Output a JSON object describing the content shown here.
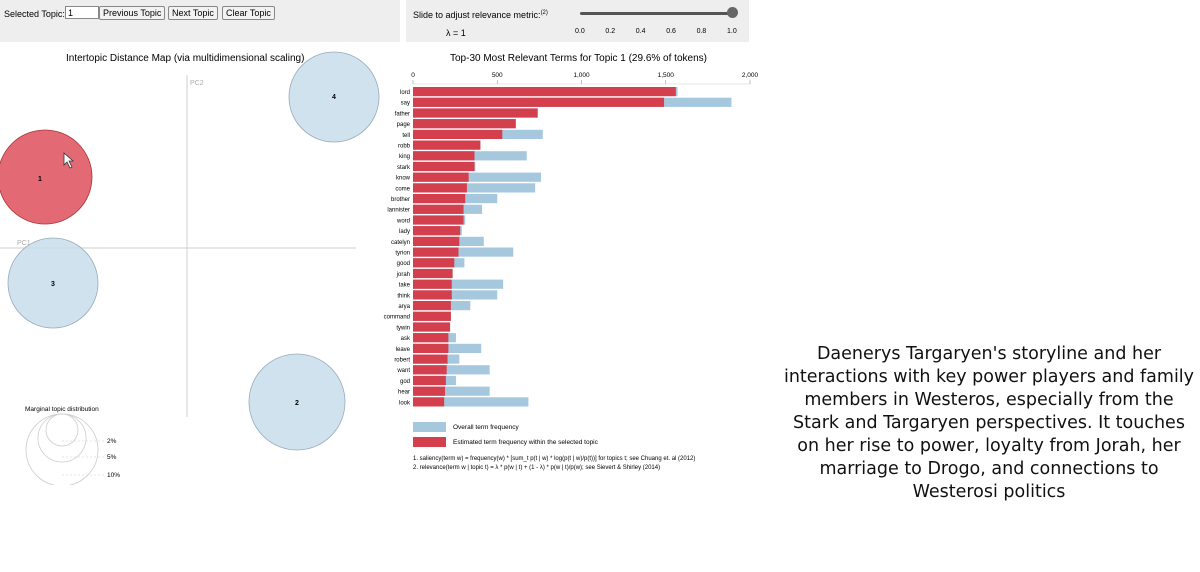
{
  "controls": {
    "selected_topic_label": "Selected Topic:",
    "selected_topic_value": "1",
    "prev_label": "Previous Topic",
    "next_label": "Next Topic",
    "clear_label": "Clear Topic"
  },
  "relevance": {
    "label": "Slide to adjust relevance metric:",
    "sup": "(2)",
    "lambda_text": "λ = 1",
    "value": 1.0,
    "ticks": [
      "0.0",
      "0.2",
      "0.4",
      "0.6",
      "0.8",
      "1.0"
    ]
  },
  "map": {
    "title": "Intertopic Distance Map (via multidimensional scaling)",
    "pc1_label": "PC1",
    "pc2_label": "PC2",
    "topics": [
      {
        "id": "1",
        "selected": true
      },
      {
        "id": "2",
        "selected": false
      },
      {
        "id": "3",
        "selected": false
      },
      {
        "id": "4",
        "selected": false
      }
    ],
    "marginal_title": "Marginal topic distribution",
    "marginal_labels": [
      "2%",
      "5%",
      "10%"
    ]
  },
  "colors": {
    "selected_topic": "#e05a66",
    "topic": "#c6dbeb",
    "overall_bar": "#a6c8df",
    "estimated_bar": "#d43f4d"
  },
  "chart_data": {
    "type": "bar",
    "orientation": "horizontal",
    "title": "Top-30 Most Relevant Terms for Topic 1 (29.6% of tokens)",
    "xlim": [
      0,
      2000
    ],
    "xticks": [
      "0",
      "500",
      "1,000",
      "1,500",
      "2,000"
    ],
    "categories": [
      "lord",
      "say",
      "father",
      "page",
      "tell",
      "robb",
      "king",
      "stark",
      "know",
      "come",
      "brother",
      "lannister",
      "word",
      "lady",
      "catelyn",
      "tyrion",
      "good",
      "jorah",
      "take",
      "think",
      "arya",
      "command",
      "tywin",
      "ask",
      "leave",
      "robert",
      "want",
      "god",
      "hear",
      "look"
    ],
    "series": [
      {
        "name": "Overall term frequency",
        "values": [
          1570,
          1890,
          740,
          610,
          770,
          400,
          675,
          370,
          760,
          725,
          500,
          410,
          310,
          290,
          420,
          595,
          305,
          235,
          535,
          500,
          340,
          225,
          220,
          255,
          405,
          275,
          455,
          255,
          455,
          685
        ]
      },
      {
        "name": "Estimated term frequency within the selected topic",
        "values": [
          1560,
          1490,
          740,
          610,
          530,
          400,
          365,
          365,
          330,
          320,
          310,
          300,
          300,
          280,
          275,
          270,
          245,
          235,
          230,
          230,
          225,
          225,
          220,
          210,
          210,
          205,
          200,
          195,
          190,
          185
        ]
      }
    ],
    "legend": [
      "Overall term frequency",
      "Estimated term frequency within the selected topic"
    ],
    "footnote1": "1. saliency(term w) = frequency(w) * [sum_t p(t | w) * log(p(t | w)/p(t))] for topics t; see Chuang et. al (2012)",
    "footnote2": "2. relevance(term w | topic t) = λ * p(w | t) + (1 - λ) * p(w | t)/p(w); see Sievert & Shirley (2014)"
  },
  "caption": "Daenerys Targaryen's storyline and her interactions with key power players and family members in Westeros, especially from the Stark and Targaryen perspectives. It touches on her rise to power, loyalty from Jorah, her marriage to Drogo, and connections to Westerosi politics"
}
